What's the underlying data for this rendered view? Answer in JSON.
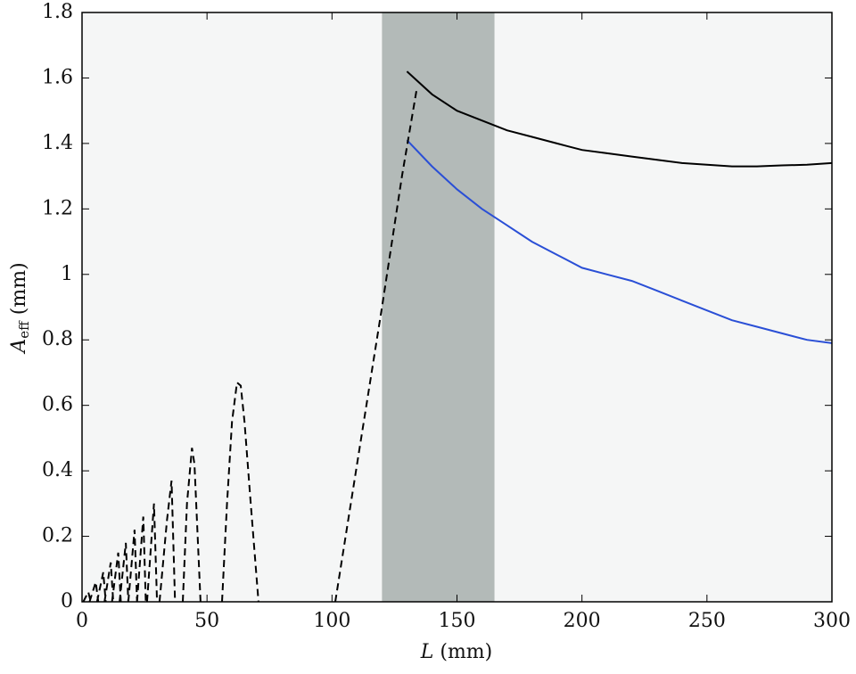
{
  "chart_data": {
    "type": "line",
    "xlabel": [
      "L",
      "(mm)"
    ],
    "ylabel": [
      "A",
      "eff",
      "(mm)"
    ],
    "xlim": [
      0,
      300
    ],
    "ylim": [
      0,
      1.8
    ],
    "xticks": [
      0,
      50,
      100,
      150,
      200,
      250,
      300
    ],
    "yticks": [
      0,
      0.2,
      0.4,
      0.6,
      0.8,
      1,
      1.2,
      1.4,
      1.6,
      1.8
    ],
    "shaded_region": [
      120,
      165
    ],
    "shaded_color": "#b3bab8",
    "background": "#f5f6f6",
    "series": [
      {
        "color": "#000000",
        "dashed": false,
        "x": [
          130,
          140,
          150,
          160,
          170,
          180,
          190,
          200,
          210,
          220,
          230,
          240,
          250,
          260,
          270,
          280,
          290,
          300
        ],
        "values": [
          1.62,
          1.55,
          1.5,
          1.47,
          1.44,
          1.42,
          1.4,
          1.38,
          1.37,
          1.36,
          1.35,
          1.34,
          1.335,
          1.33,
          1.33,
          1.333,
          1.335,
          1.34
        ]
      },
      {
        "color": "#2a4fd6",
        "dashed": false,
        "x": [
          130,
          140,
          150,
          160,
          170,
          180,
          190,
          200,
          210,
          220,
          230,
          240,
          250,
          260,
          270,
          280,
          290,
          300
        ],
        "values": [
          1.41,
          1.33,
          1.26,
          1.2,
          1.15,
          1.1,
          1.06,
          1.02,
          1.0,
          0.98,
          0.95,
          0.92,
          0.89,
          0.86,
          0.84,
          0.82,
          0.8,
          0.79
        ]
      },
      {
        "color": "#000000",
        "dashed": true,
        "x": [
          0.5,
          2.5,
          3.5,
          null,
          3,
          5.5,
          6.5,
          null,
          6,
          8.5,
          9.5,
          null,
          9,
          11.5,
          12.5,
          null,
          12,
          14.5,
          15.5,
          null,
          15,
          17.5,
          18.5,
          null,
          18.5,
          21,
          22,
          null,
          22,
          24.5,
          25.5,
          null,
          26,
          28.8,
          30,
          null,
          31,
          34,
          35.8,
          37.2,
          null,
          40.3,
          42,
          44,
          45,
          47.4,
          null,
          56,
          58,
          60,
          62,
          63.5,
          65,
          67.5,
          70.6,
          null,
          101.3,
          110,
          120,
          128,
          134
        ],
        "values": [
          0,
          0.03,
          0,
          null,
          0,
          0.06,
          0,
          null,
          0,
          0.09,
          0,
          null,
          0,
          0.12,
          0,
          null,
          0,
          0.15,
          0,
          null,
          0,
          0.18,
          0,
          null,
          0,
          0.22,
          0,
          null,
          0,
          0.26,
          0,
          null,
          0,
          0.3,
          0,
          null,
          0,
          0.25,
          0.37,
          0,
          null,
          0,
          0.3,
          0.47,
          0.42,
          0,
          null,
          0,
          0.3,
          0.55,
          0.67,
          0.66,
          0.55,
          0.3,
          0,
          null,
          0,
          0.42,
          0.9,
          1.3,
          1.57
        ]
      }
    ]
  }
}
